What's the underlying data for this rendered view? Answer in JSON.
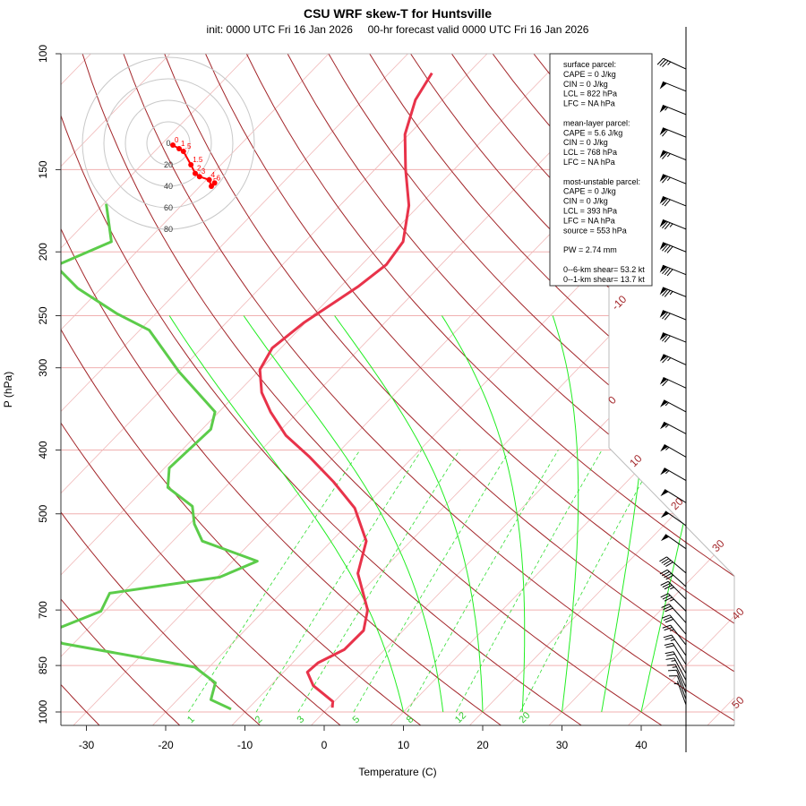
{
  "chart_data": {
    "type": "line",
    "title": "CSU WRF skew-T for Huntsville",
    "subtitle": "init: 0000 UTC Fri 16 Jan 2026     00-hr forecast valid 0000 UTC Fri 16 Jan 2026",
    "xlabel": "Temperature (C)",
    "ylabel": "P (hPa)",
    "x_ticks": [
      -30,
      -20,
      -10,
      0,
      10,
      20,
      30,
      40
    ],
    "y_ticks": [
      100,
      150,
      200,
      250,
      300,
      400,
      500,
      700,
      850,
      1000
    ],
    "xlim": [
      -33,
      50
    ],
    "ylim": [
      1050,
      100
    ],
    "grid": true,
    "isotherm_labels": [
      "-10",
      "0",
      "10",
      "20",
      "30",
      "40",
      "50"
    ],
    "mixing_ratio_labels": [
      "1",
      "2",
      "3",
      "5",
      "8",
      "12",
      "20"
    ],
    "series": [
      {
        "name": "temperature",
        "color": "#e8334a",
        "p": [
          107,
          117.5,
          132.6,
          150,
          170,
          193,
          209,
          226,
          256,
          280,
          302,
          327,
          350,
          380,
          409,
          447,
          490,
          550,
          616,
          700,
          752,
          804,
          842,
          870,
          912,
          964,
          985
        ],
        "t": [
          -64.6,
          -63.4,
          -60.5,
          -56.1,
          -51.3,
          -47.6,
          -46.9,
          -47.8,
          -50.2,
          -51.1,
          -50,
          -47,
          -43.5,
          -38.7,
          -33.2,
          -27,
          -21.1,
          -15.6,
          -12.7,
          -7,
          -5,
          -5.1,
          -6.8,
          -7,
          -4.6,
          -0.2,
          0.5
        ]
      },
      {
        "name": "dewpoint",
        "color": "#5ccc4a",
        "p": [
          169,
          193,
          210,
          227,
          248,
          263,
          304,
          350,
          372,
          426,
          456,
          487,
          518,
          550,
          590,
          624,
          660,
          703,
          760,
          787,
          855,
          903,
          958,
          990
        ],
        "t": [
          -89.7,
          -84.4,
          -88.5,
          -83,
          -75,
          -68.8,
          -60,
          -50.5,
          -48.9,
          -49.4,
          -47.2,
          -41.8,
          -39.4,
          -36.3,
          -26.9,
          -29.7,
          -41.6,
          -40.5,
          -44.8,
          -41.4,
          -21.8,
          -17.3,
          -15.8,
          -12.1
        ]
      }
    ],
    "wind_barbs": {
      "p": [
        105.5,
        114,
        123.7,
        133.9,
        145,
        157.6,
        170.3,
        184.7,
        200,
        216.6,
        234,
        253.6,
        274.3,
        297,
        322,
        350,
        378,
        410,
        445,
        481,
        521,
        565,
        615,
        645,
        674,
        703,
        732,
        762,
        791,
        821,
        847,
        874,
        895,
        917,
        937,
        957,
        975
      ],
      "speed_kt": [
        35,
        50,
        55,
        60,
        65,
        65,
        70,
        75,
        80,
        80,
        75,
        70,
        70,
        65,
        60,
        55,
        55,
        55,
        55,
        50,
        50,
        50,
        40,
        40,
        35,
        35,
        30,
        30,
        25,
        25,
        20,
        20,
        15,
        15,
        10,
        10,
        5
      ],
      "dir_deg": [
        295,
        292,
        292,
        292,
        292,
        292,
        292,
        292,
        292,
        292,
        292,
        292,
        292,
        295,
        295,
        298,
        298,
        300,
        300,
        302,
        305,
        305,
        310,
        312,
        315,
        315,
        318,
        320,
        322,
        325,
        328,
        330,
        332,
        335,
        338,
        340,
        340
      ]
    },
    "hodograph": {
      "ring_labels": [
        "0",
        "20",
        "40",
        "60",
        "80"
      ],
      "rings_kt": [
        20,
        40,
        60,
        80
      ],
      "color": "#ff0000",
      "points": [
        {
          "label": "0",
          "u": 4.2,
          "v": -1.7
        },
        {
          "label": "1",
          "u": 10,
          "v": -5
        },
        {
          "label": ".5",
          "u": 14,
          "v": -7.5
        },
        {
          "label": "1.5",
          "u": 21,
          "v": -20
        },
        {
          "label": "2",
          "u": 25,
          "v": -28
        },
        {
          "label": "3",
          "u": 29,
          "v": -31
        },
        {
          "label": "4",
          "u": 38,
          "v": -34
        },
        {
          "label": "5",
          "u": 40,
          "v": -40
        },
        {
          "label": "6",
          "u": 43,
          "v": -37
        }
      ]
    }
  },
  "legend": {
    "lines": [
      "surface parcel:",
      "CAPE = 0 J/kg",
      "CIN = 0 J/kg",
      "LCL = 822 hPa",
      "LFC = NA hPa",
      "",
      "mean-layer parcel:",
      "CAPE = 5.6 J/kg",
      "CIN = 0 J/kg",
      "LCL = 768 hPa",
      "LFC = NA hPa",
      "",
      "most-unstable parcel:",
      "CAPE = 0 J/kg",
      "CIN = 0 J/kg",
      "LCL = 393 hPa",
      "LFC = NA hPa",
      "source = 553 hPa",
      "",
      "PW =  2.74 mm",
      "",
      "0--6-km shear= 53.2 kt",
      "0--1-km shear= 13.7 kt"
    ]
  }
}
